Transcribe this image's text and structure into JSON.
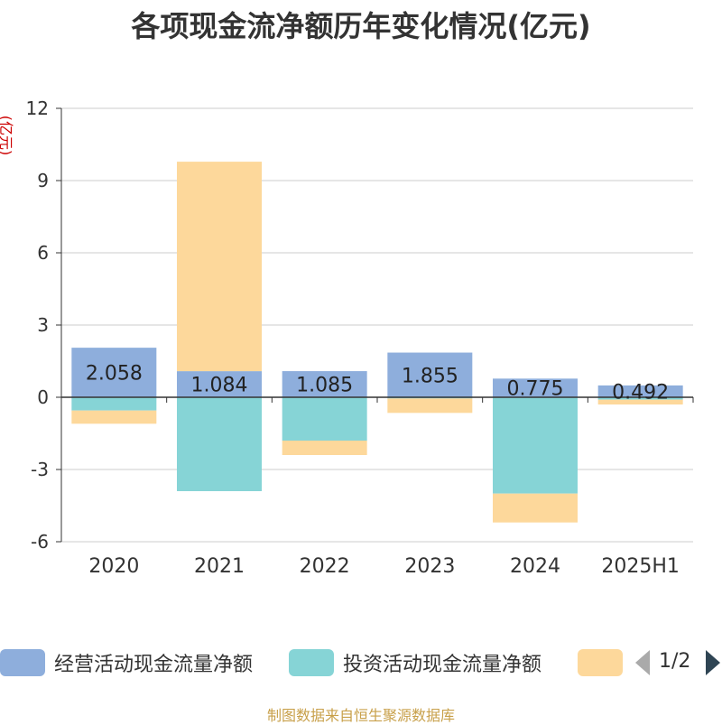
{
  "title": "各项现金流净额历年变化情况(亿元)",
  "unit_label": "(亿元)",
  "source": "制图数据来自恒生聚源数据库",
  "pager": {
    "text": "1/2"
  },
  "legend": [
    {
      "name": "经营活动现金流量净额",
      "color": "#8eaedc"
    },
    {
      "name": "投资活动现金流量净额",
      "color": "#86d4d6"
    },
    {
      "name": "",
      "color": "#fdd89b"
    }
  ],
  "chart_data": {
    "type": "bar",
    "stacked": true,
    "categories": [
      "2020",
      "2021",
      "2022",
      "2023",
      "2024",
      "2025H1"
    ],
    "ylim": [
      -6,
      12
    ],
    "yticks": [
      -6,
      -3,
      0,
      3,
      6,
      9,
      12
    ],
    "grid": true,
    "legend_position": "bottom",
    "series": [
      {
        "name": "经营活动现金流量净额",
        "color": "#8eaedc",
        "values": [
          2.058,
          1.084,
          1.085,
          1.855,
          0.775,
          0.492
        ],
        "labels": [
          "2.058",
          "1.084",
          "1.085",
          "1.855",
          "0.775",
          "0.492"
        ]
      },
      {
        "name": "投资活动现金流量净额",
        "color": "#86d4d6",
        "values": [
          -0.55,
          -3.9,
          -1.8,
          -0.05,
          -4.0,
          -0.1
        ]
      },
      {
        "name": "",
        "color": "#fdd89b",
        "values": [
          -0.55,
          8.7,
          -0.6,
          -0.6,
          -1.2,
          -0.2
        ]
      }
    ]
  }
}
